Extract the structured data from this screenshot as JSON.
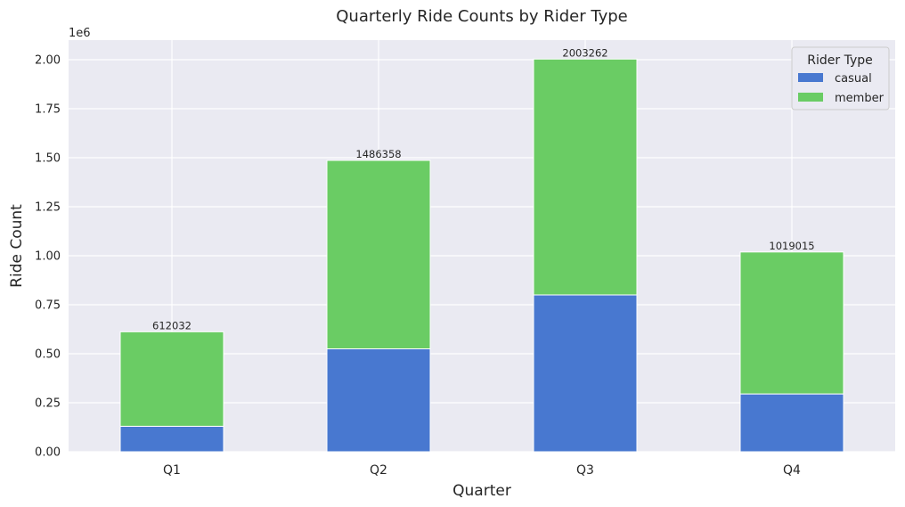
{
  "chart_data": {
    "type": "bar",
    "stacked": true,
    "title": "Quarterly Ride Counts by Rider Type",
    "xlabel": "Quarter",
    "ylabel": "Ride Count",
    "offset_label": "1e6",
    "categories": [
      "Q1",
      "Q2",
      "Q3",
      "Q4"
    ],
    "series": [
      {
        "name": "casual",
        "color": "#4878d0",
        "values": [
          130000,
          525000,
          800000,
          295000
        ]
      },
      {
        "name": "member",
        "color": "#6acc64",
        "values": [
          482032,
          961358,
          1203262,
          724015
        ]
      }
    ],
    "totals": [
      612032,
      1486358,
      2003262,
      1019015
    ],
    "total_labels": [
      "612032",
      "1486358",
      "2003262",
      "1019015"
    ],
    "ylim": [
      0,
      2100000
    ],
    "yticks": [
      0,
      250000,
      500000,
      750000,
      1000000,
      1250000,
      1500000,
      1750000,
      2000000
    ],
    "ytick_labels": [
      "0.00",
      "0.25",
      "0.50",
      "0.75",
      "1.00",
      "1.25",
      "1.50",
      "1.75",
      "2.00"
    ],
    "legend_title": "Rider Type",
    "legend_position": "top-right",
    "grid": true,
    "background_color": "#eaeaf2",
    "grid_color": "#ffffff"
  }
}
